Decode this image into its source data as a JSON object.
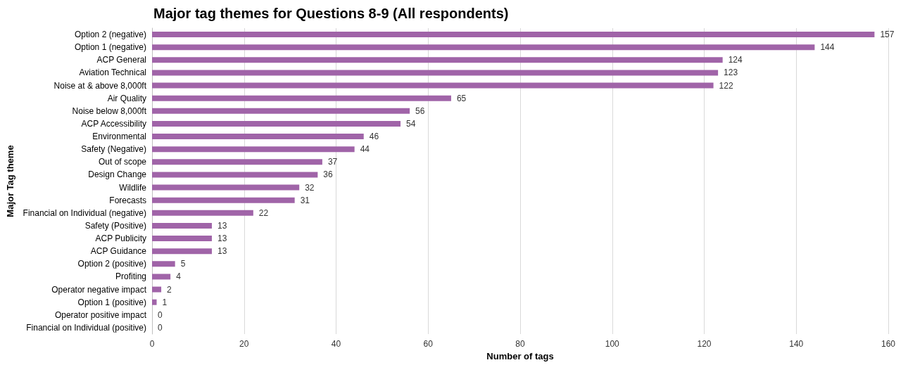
{
  "chart_data": {
    "type": "bar",
    "orientation": "horizontal",
    "title": "Major tag themes for Questions 8-9 (All respondents)",
    "xlabel": "Number of tags",
    "ylabel": "Major Tag theme",
    "categories": [
      "Option 2 (negative)",
      "Option 1 (negative)",
      "ACP General",
      "Aviation Technical",
      "Noise at & above 8,000ft",
      "Air Quality",
      "Noise below 8,000ft",
      "ACP Accessibility",
      "Environmental",
      "Safety (Negative)",
      "Out of scope",
      "Design Change",
      "Wildlife",
      "Forecasts",
      "Financial on Individual (negative)",
      "Safety (Positive)",
      "ACP Publicity",
      "ACP Guidance",
      "Option 2 (positive)",
      "Profiting",
      "Operator negative impact",
      "Option 1 (positive)",
      "Operator positive impact",
      "Financial on Individual (positive)"
    ],
    "values": [
      157,
      144,
      124,
      123,
      122,
      65,
      56,
      54,
      46,
      44,
      37,
      36,
      32,
      31,
      22,
      13,
      13,
      13,
      5,
      4,
      2,
      1,
      0,
      0
    ],
    "color": "#a064a8",
    "xlim": [
      0,
      160
    ],
    "xticks": [
      0,
      20,
      40,
      60,
      80,
      100,
      120,
      140,
      160
    ],
    "grid": "x",
    "data_labels": true
  }
}
